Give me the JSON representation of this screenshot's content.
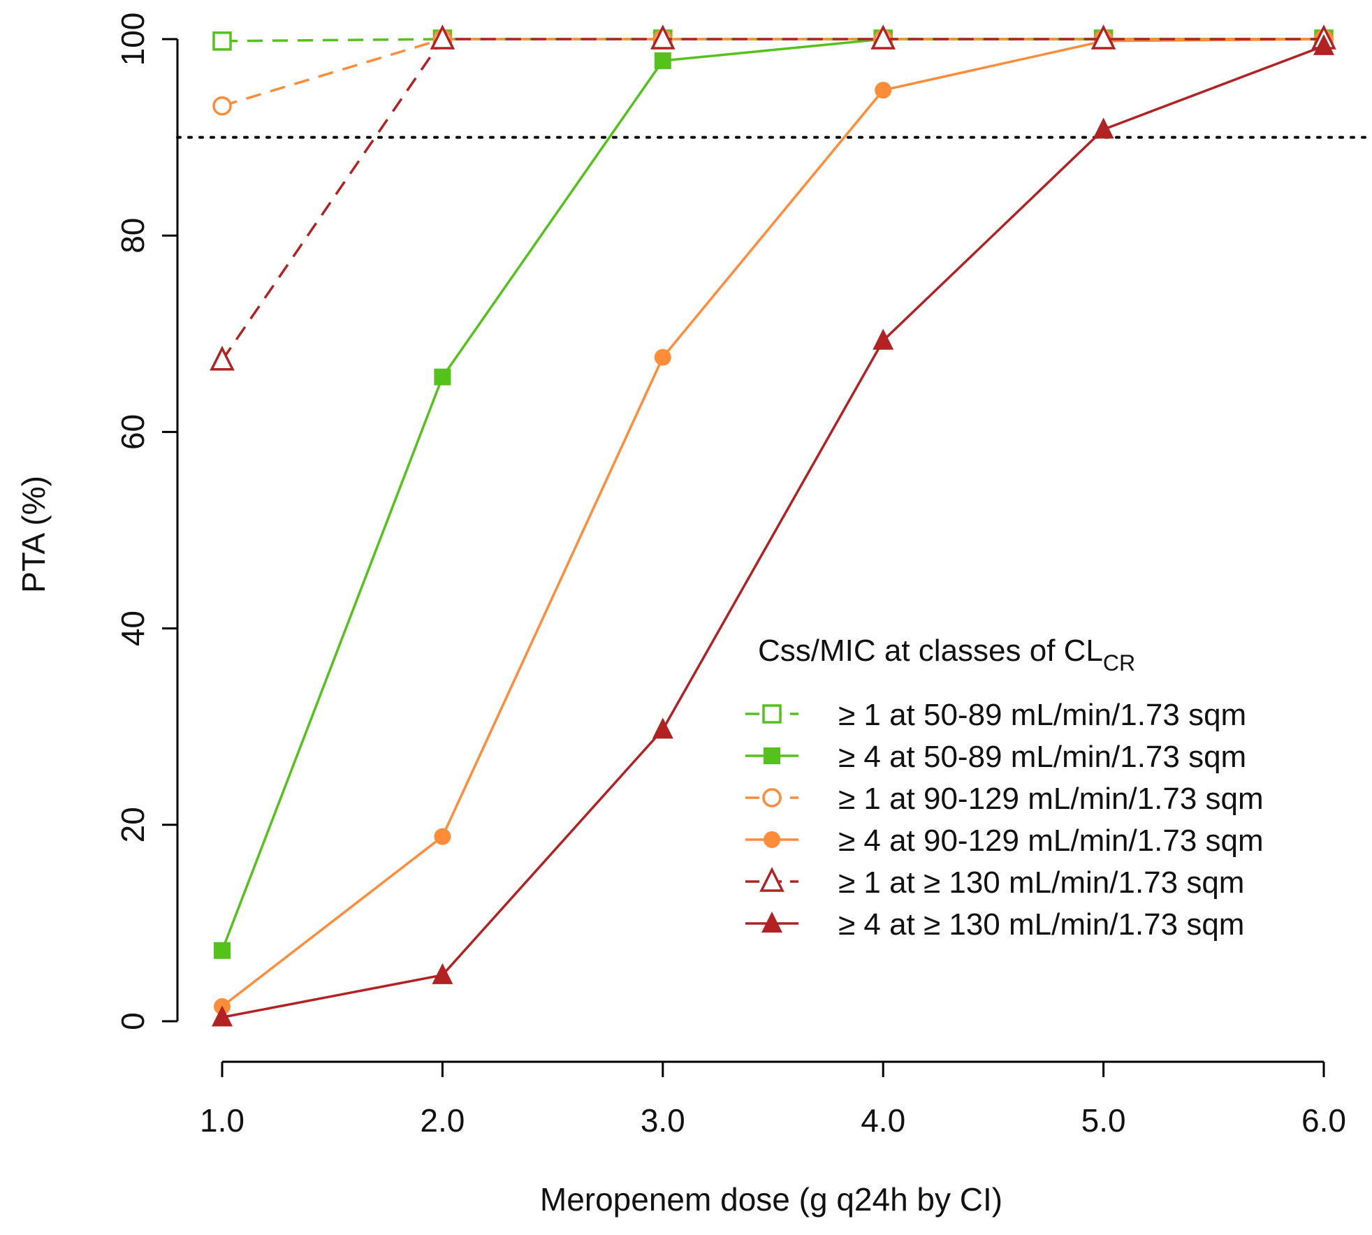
{
  "chart_data": {
    "type": "line",
    "xlabel": "Meropenem dose (g q24h by CI)",
    "ylabel": "PTA (%)",
    "xlim": [
      1,
      6
    ],
    "ylim": [
      0,
      100
    ],
    "x": [
      1,
      2,
      3,
      4,
      5,
      6
    ],
    "x_tick_labels": [
      "1.0",
      "2.0",
      "3.0",
      "4.0",
      "5.0",
      "6.0"
    ],
    "y_ticks": [
      0,
      20,
      40,
      60,
      80,
      100
    ],
    "y_tick_labels": [
      "0",
      "20",
      "40",
      "60",
      "80",
      "100"
    ],
    "reference_line": {
      "y": 90,
      "style": "dotted",
      "color": "#000000"
    },
    "legend": {
      "title_main": "Css/MIC at classes of CL",
      "title_sub": "CR",
      "placement": "center-right"
    },
    "series": [
      {
        "name": "≥ 1 at 50-89 mL/min/1.73 sqm",
        "color": "#55c21b",
        "dash": true,
        "marker": "square-open",
        "values": [
          99.8,
          100,
          100,
          100,
          100,
          100
        ]
      },
      {
        "name": "≥ 4 at 50-89 mL/min/1.73 sqm",
        "color": "#55c21b",
        "dash": false,
        "marker": "square-filled",
        "values": [
          7.2,
          65.6,
          97.8,
          100,
          100,
          100
        ]
      },
      {
        "name": "≥ 1 at 90-129 mL/min/1.73 sqm",
        "color": "#ff8c38",
        "dash": true,
        "marker": "circle-open",
        "values": [
          93.2,
          100,
          100,
          100,
          100,
          100
        ]
      },
      {
        "name": "≥ 4 at 90-129 mL/min/1.73 sqm",
        "color": "#ff8c38",
        "dash": false,
        "marker": "circle-filled",
        "values": [
          1.5,
          18.8,
          67.6,
          94.8,
          99.8,
          100
        ]
      },
      {
        "name": "≥ 1 at ≥ 130 mL/min/1.73 sqm",
        "color": "#b22222",
        "dash": true,
        "marker": "triangle-open",
        "values": [
          67.3,
          100,
          100,
          100,
          100,
          100
        ]
      },
      {
        "name": "≥ 4 at ≥ 130 mL/min/1.73 sqm",
        "color": "#b22222",
        "dash": false,
        "marker": "triangle-filled",
        "values": [
          0.4,
          4.7,
          29.7,
          69.3,
          90.8,
          99.3
        ]
      }
    ]
  }
}
